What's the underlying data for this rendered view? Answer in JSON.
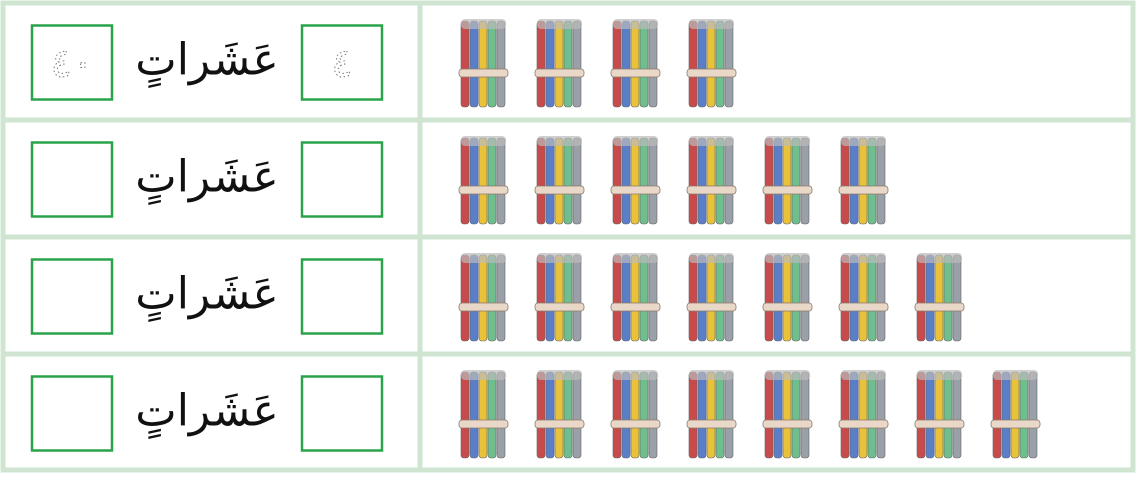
{
  "rows": [
    {
      "total_box": "٤٠",
      "word": "عَشَراتٍ",
      "tens_box": "٤",
      "bundles": 4
    },
    {
      "word": "عَشَراتٍ",
      "bundles": 6
    },
    {
      "word": "عَشَراتٍ",
      "bundles": 7
    },
    {
      "word": "عَشَراتٍ",
      "bundles": 8
    }
  ]
}
